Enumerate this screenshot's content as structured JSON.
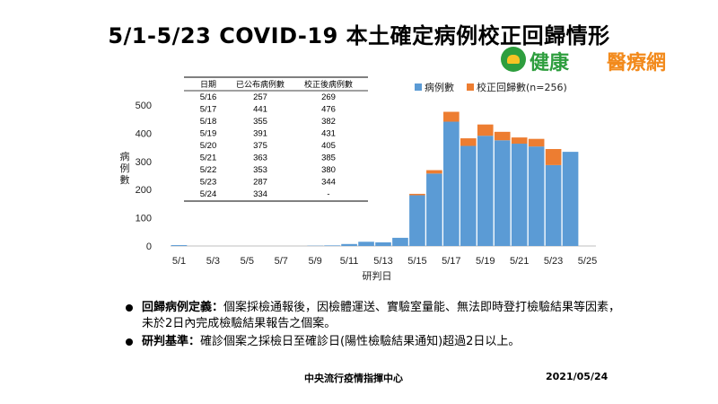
{
  "title": "5/1-5/23 COVID-19 本土確定病例校正回歸情形",
  "logo": {
    "part1": "健康",
    "part2": "醫療網"
  },
  "notes": [
    {
      "term": "回歸病例定義：",
      "text": "個案採檢通報後，因檢體運送、實驗室量能、無法即時登打檢驗結果等因素，未於2日內完成檢驗結果報告之個案。"
    },
    {
      "term": "研判基準：",
      "text": "確診個案之採檢日至確診日(陽性檢驗結果通知)超過2日以上。"
    }
  ],
  "footer": {
    "org": "中央流行疫情指揮中心",
    "date": "2021/05/24"
  },
  "chart_data": {
    "type": "bar",
    "stacked": true,
    "xlabel": "研判日",
    "ylabel": "病例數",
    "ylim": [
      0,
      500
    ],
    "yticks": [
      0,
      100,
      200,
      300,
      400,
      500
    ],
    "categories": [
      "5/1",
      "5/2",
      "5/3",
      "5/4",
      "5/5",
      "5/6",
      "5/7",
      "5/8",
      "5/9",
      "5/10",
      "5/11",
      "5/12",
      "5/13",
      "5/14",
      "5/15",
      "5/16",
      "5/17",
      "5/18",
      "5/19",
      "5/20",
      "5/21",
      "5/22",
      "5/23",
      "5/24",
      "5/25"
    ],
    "x_tick_labels": [
      "5/1",
      "5/3",
      "5/5",
      "5/7",
      "5/9",
      "5/11",
      "5/13",
      "5/15",
      "5/17",
      "5/19",
      "5/21",
      "5/23",
      "5/25"
    ],
    "series": [
      {
        "name": "病例數",
        "color": "#5b9bd5",
        "values": [
          3,
          0,
          0,
          0,
          0,
          0,
          0,
          0,
          1,
          2,
          7,
          15,
          13,
          29,
          180,
          257,
          441,
          355,
          391,
          375,
          363,
          353,
          287,
          334,
          null
        ]
      },
      {
        "name": "校正回歸數(n=256)",
        "color": "#ed7d31",
        "values": [
          0,
          0,
          0,
          0,
          0,
          0,
          0,
          0,
          0,
          0,
          0,
          0,
          0,
          0,
          5,
          12,
          35,
          27,
          40,
          30,
          22,
          27,
          57,
          0,
          null
        ]
      }
    ],
    "legend_position": "top-right",
    "table": {
      "headers": [
        "日期",
        "已公布病例數",
        "校正後病例數"
      ],
      "rows": [
        [
          "5/16",
          "257",
          "269"
        ],
        [
          "5/17",
          "441",
          "476"
        ],
        [
          "5/18",
          "355",
          "382"
        ],
        [
          "5/19",
          "391",
          "431"
        ],
        [
          "5/20",
          "375",
          "405"
        ],
        [
          "5/21",
          "363",
          "385"
        ],
        [
          "5/22",
          "353",
          "380"
        ],
        [
          "5/23",
          "287",
          "344"
        ],
        [
          "5/24",
          "334",
          "-"
        ]
      ]
    }
  }
}
